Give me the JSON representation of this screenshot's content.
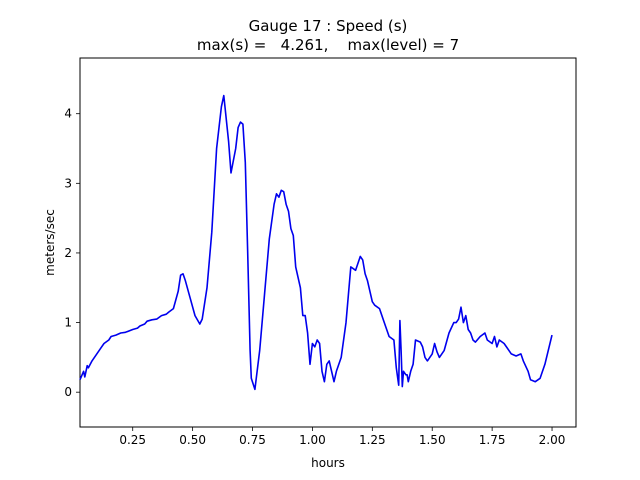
{
  "chart_data": {
    "type": "line",
    "title": "Gauge 17 : Speed (s)",
    "subtitle": "max(s) =   4.261,    max(level) = 7",
    "xlabel": "hours",
    "ylabel": "meters/sec",
    "xlim": [
      0.03,
      2.1
    ],
    "ylim": [
      -0.5,
      4.8
    ],
    "xticks": [
      0.25,
      0.5,
      0.75,
      1.0,
      1.25,
      1.5,
      1.75,
      2.0
    ],
    "xtick_labels": [
      "0.25",
      "0.50",
      "0.75",
      "1.00",
      "1.25",
      "1.50",
      "1.75",
      "2.00"
    ],
    "yticks": [
      0,
      1,
      2,
      3,
      4
    ],
    "ytick_labels": [
      "0",
      "1",
      "2",
      "3",
      "4"
    ],
    "grid": false,
    "series": [
      {
        "color": "#0000ee",
        "x": [
          0.03,
          0.045,
          0.05,
          0.06,
          0.065,
          0.08,
          0.1,
          0.12,
          0.13,
          0.15,
          0.16,
          0.18,
          0.2,
          0.22,
          0.25,
          0.27,
          0.28,
          0.3,
          0.31,
          0.33,
          0.35,
          0.37,
          0.39,
          0.4,
          0.42,
          0.44,
          0.45,
          0.46,
          0.47,
          0.49,
          0.51,
          0.53,
          0.54,
          0.56,
          0.58,
          0.6,
          0.62,
          0.63,
          0.65,
          0.66,
          0.68,
          0.69,
          0.7,
          0.71,
          0.72,
          0.73,
          0.74,
          0.745,
          0.76,
          0.78,
          0.8,
          0.82,
          0.84,
          0.85,
          0.86,
          0.87,
          0.88,
          0.89,
          0.9,
          0.91,
          0.92,
          0.93,
          0.95,
          0.955,
          0.96,
          0.97,
          0.98,
          0.99,
          1.0,
          1.01,
          1.02,
          1.03,
          1.04,
          1.05,
          1.06,
          1.07,
          1.08,
          1.09,
          1.1,
          1.12,
          1.14,
          1.15,
          1.16,
          1.18,
          1.2,
          1.21,
          1.22,
          1.23,
          1.25,
          1.26,
          1.28,
          1.3,
          1.32,
          1.34,
          1.35,
          1.36,
          1.365,
          1.37,
          1.375,
          1.38,
          1.39,
          1.395,
          1.4,
          1.41,
          1.42,
          1.43,
          1.45,
          1.46,
          1.47,
          1.48,
          1.49,
          1.5,
          1.51,
          1.52,
          1.53,
          1.55,
          1.57,
          1.59,
          1.6,
          1.61,
          1.62,
          1.63,
          1.64,
          1.65,
          1.66,
          1.67,
          1.68,
          1.7,
          1.72,
          1.73,
          1.75,
          1.76,
          1.77,
          1.78,
          1.8,
          1.82,
          1.83,
          1.85,
          1.87,
          1.88,
          1.9,
          1.91,
          1.93,
          1.95,
          1.97,
          2.0
        ],
        "y": [
          0.18,
          0.3,
          0.22,
          0.38,
          0.35,
          0.45,
          0.55,
          0.65,
          0.7,
          0.75,
          0.8,
          0.82,
          0.85,
          0.86,
          0.9,
          0.92,
          0.95,
          0.98,
          1.02,
          1.04,
          1.05,
          1.1,
          1.12,
          1.15,
          1.2,
          1.45,
          1.68,
          1.7,
          1.6,
          1.35,
          1.1,
          0.98,
          1.05,
          1.5,
          2.3,
          3.5,
          4.1,
          4.26,
          3.6,
          3.15,
          3.5,
          3.8,
          3.88,
          3.85,
          3.3,
          2.0,
          0.6,
          0.2,
          0.04,
          0.6,
          1.4,
          2.2,
          2.7,
          2.85,
          2.8,
          2.9,
          2.88,
          2.7,
          2.6,
          2.35,
          2.25,
          1.8,
          1.5,
          1.3,
          1.1,
          1.1,
          0.85,
          0.4,
          0.7,
          0.65,
          0.75,
          0.7,
          0.3,
          0.15,
          0.4,
          0.45,
          0.3,
          0.15,
          0.3,
          0.5,
          1.0,
          1.4,
          1.8,
          1.75,
          1.95,
          1.9,
          1.7,
          1.6,
          1.3,
          1.25,
          1.2,
          1.0,
          0.8,
          0.75,
          0.35,
          0.1,
          1.03,
          0.6,
          0.08,
          0.3,
          0.25,
          0.25,
          0.15,
          0.3,
          0.4,
          0.75,
          0.72,
          0.65,
          0.5,
          0.45,
          0.5,
          0.55,
          0.7,
          0.58,
          0.5,
          0.6,
          0.85,
          1.0,
          1.0,
          1.05,
          1.22,
          1.0,
          1.1,
          0.9,
          0.85,
          0.75,
          0.72,
          0.8,
          0.85,
          0.75,
          0.7,
          0.8,
          0.65,
          0.75,
          0.7,
          0.6,
          0.55,
          0.52,
          0.55,
          0.45,
          0.3,
          0.18,
          0.15,
          0.2,
          0.4,
          0.82
        ]
      }
    ]
  }
}
